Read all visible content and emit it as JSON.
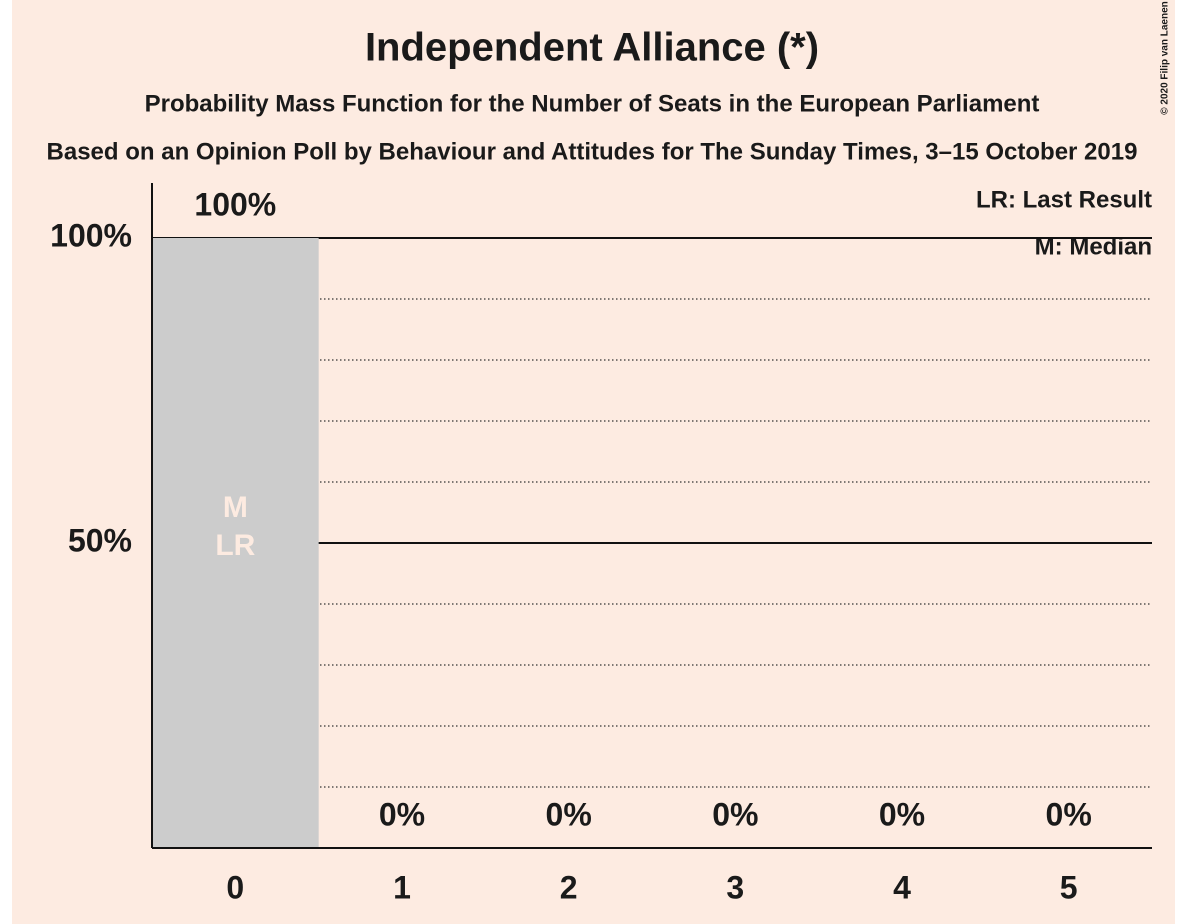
{
  "chart_data": {
    "type": "bar",
    "title": "Independent Alliance (*)",
    "subtitle": "Probability Mass Function for the Number of Seats in the European Parliament",
    "subtitle2": "Based on an Opinion Poll by Behaviour and Attitudes for The Sunday Times, 3–15 October 2019",
    "copyright": "© 2020 Filip van Laenen",
    "legend": [
      "LR: Last Result",
      "M: Median"
    ],
    "bar_annotations": [
      "M",
      "LR"
    ],
    "categories": [
      "0",
      "1",
      "2",
      "3",
      "4",
      "5"
    ],
    "values": [
      100,
      0,
      0,
      0,
      0,
      0
    ],
    "value_labels": [
      "100%",
      "0%",
      "0%",
      "0%",
      "0%",
      "0%"
    ],
    "color": "#cccccc",
    "ylim": [
      0,
      100
    ],
    "yticks": [
      {
        "value": 50,
        "label": "50%"
      },
      {
        "value": 100,
        "label": "100%"
      }
    ],
    "minor_yticks": [
      10,
      20,
      30,
      40,
      60,
      70,
      80,
      90
    ],
    "grid": true
  }
}
